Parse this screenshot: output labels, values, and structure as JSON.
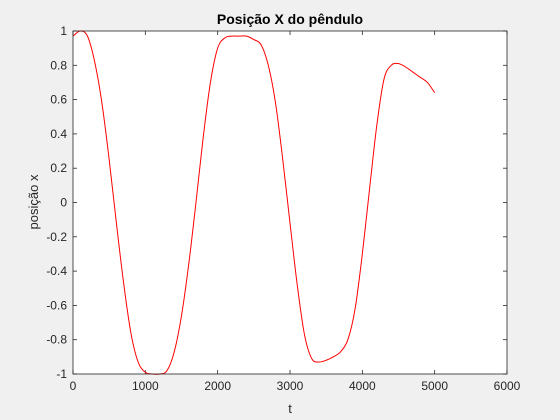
{
  "chart_data": {
    "type": "line",
    "title": "Posição X do pêndulo",
    "xlabel": "t",
    "ylabel": "posição x",
    "xlim": [
      0,
      6000
    ],
    "ylim": [
      -1,
      1
    ],
    "x_ticks": [
      0,
      1000,
      2000,
      3000,
      4000,
      5000,
      6000
    ],
    "x_tick_labels": [
      "0",
      "1000",
      "2000",
      "3000",
      "4000",
      "5000",
      "6000"
    ],
    "y_ticks": [
      -1,
      -0.8,
      -0.6,
      -0.4,
      -0.2,
      0,
      0.2,
      0.4,
      0.6,
      0.8,
      1
    ],
    "y_tick_labels": [
      "-1",
      "-0.8",
      "-0.6",
      "-0.4",
      "-0.2",
      "0",
      "0.2",
      "0.4",
      "0.6",
      "0.8",
      "1"
    ],
    "grid": false,
    "series": [
      {
        "color": "#ff0000",
        "x": [
          0,
          100,
          200,
          300,
          400,
          500,
          600,
          700,
          800,
          900,
          1000,
          1100,
          1200,
          1300,
          1400,
          1500,
          1600,
          1700,
          1800,
          1900,
          2000,
          2100,
          2200,
          2300,
          2400,
          2500,
          2600,
          2700,
          2800,
          2900,
          3000,
          3100,
          3200,
          3300,
          3400,
          3500,
          3600,
          3700,
          3800,
          3900,
          4000,
          4100,
          4200,
          4300,
          4400,
          4500,
          4600,
          4700,
          4800,
          4900,
          5000
        ],
        "y": [
          0.97,
          1.0,
          0.97,
          0.82,
          0.58,
          0.25,
          -0.12,
          -0.47,
          -0.76,
          -0.93,
          -0.99,
          -1.0,
          -1.0,
          -0.98,
          -0.87,
          -0.66,
          -0.36,
          0.0,
          0.38,
          0.7,
          0.9,
          0.96,
          0.97,
          0.97,
          0.97,
          0.95,
          0.92,
          0.8,
          0.58,
          0.25,
          -0.12,
          -0.48,
          -0.77,
          -0.91,
          -0.93,
          -0.92,
          -0.9,
          -0.87,
          -0.8,
          -0.62,
          -0.3,
          0.08,
          0.45,
          0.72,
          0.8,
          0.81,
          0.79,
          0.76,
          0.73,
          0.7,
          0.64
        ]
      }
    ]
  }
}
